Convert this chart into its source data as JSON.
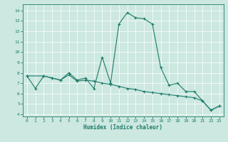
{
  "title": "",
  "xlabel": "Humidex (Indice chaleur)",
  "ylabel": "",
  "background_color": "#cce8e0",
  "line_color": "#1e7b6a",
  "xlim": [
    -0.5,
    23.5
  ],
  "ylim": [
    3.8,
    14.6
  ],
  "xticks": [
    0,
    1,
    2,
    3,
    4,
    5,
    6,
    7,
    8,
    9,
    10,
    11,
    12,
    13,
    14,
    15,
    16,
    17,
    18,
    19,
    20,
    21,
    22,
    23
  ],
  "yticks": [
    4,
    5,
    6,
    7,
    8,
    9,
    10,
    11,
    12,
    13,
    14
  ],
  "series": [
    [
      0,
      7.7
    ],
    [
      1,
      6.5
    ],
    [
      2,
      7.7
    ],
    [
      3,
      7.5
    ],
    [
      4,
      7.3
    ],
    [
      5,
      8.0
    ],
    [
      6,
      7.3
    ],
    [
      7,
      7.5
    ],
    [
      8,
      6.5
    ],
    [
      9,
      9.5
    ],
    [
      10,
      7.0
    ],
    [
      11,
      12.7
    ],
    [
      12,
      13.8
    ],
    [
      13,
      13.3
    ],
    [
      14,
      13.2
    ],
    [
      15,
      12.7
    ],
    [
      16,
      8.5
    ],
    [
      17,
      6.8
    ],
    [
      18,
      7.0
    ],
    [
      19,
      6.2
    ],
    [
      20,
      6.2
    ],
    [
      21,
      5.3
    ],
    [
      22,
      4.4
    ],
    [
      23,
      4.8
    ]
  ],
  "series2": [
    [
      0,
      7.7
    ],
    [
      2,
      7.7
    ],
    [
      3,
      7.5
    ],
    [
      4,
      7.3
    ],
    [
      5,
      7.8
    ],
    [
      6,
      7.2
    ],
    [
      7,
      7.3
    ],
    [
      8,
      7.2
    ],
    [
      9,
      7.0
    ],
    [
      10,
      6.9
    ],
    [
      11,
      6.7
    ],
    [
      12,
      6.5
    ],
    [
      13,
      6.4
    ],
    [
      14,
      6.2
    ],
    [
      15,
      6.1
    ],
    [
      16,
      6.0
    ],
    [
      17,
      5.9
    ],
    [
      18,
      5.8
    ],
    [
      19,
      5.7
    ],
    [
      20,
      5.6
    ],
    [
      21,
      5.3
    ],
    [
      22,
      4.4
    ],
    [
      23,
      4.8
    ]
  ]
}
